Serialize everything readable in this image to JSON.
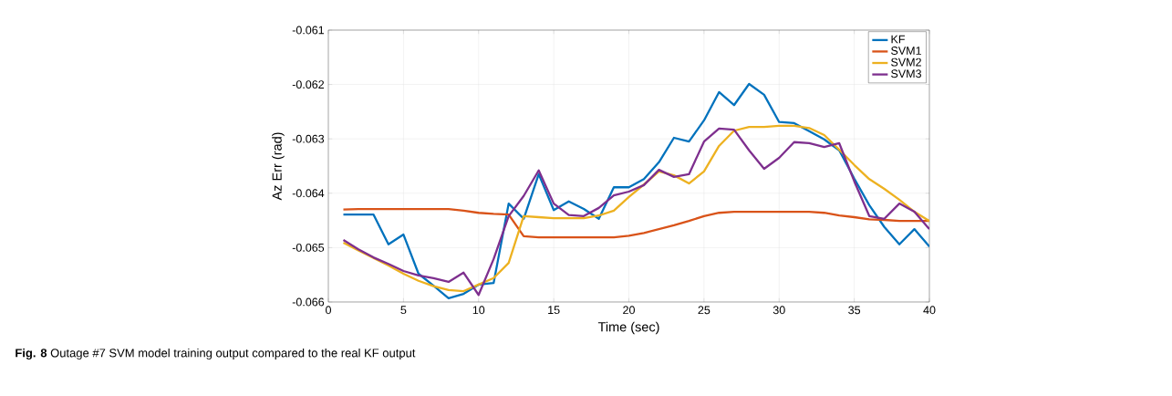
{
  "chart_data": {
    "type": "line",
    "xlabel": "Time (sec)",
    "ylabel": "Az Err (rad)",
    "annotations": [
      "**Fig. 8** Outage #7 SVM model training output compared to the real KF output"
    ],
    "x": [
      1,
      2,
      3,
      4,
      5,
      6,
      7,
      8,
      9,
      10,
      11,
      12,
      13,
      14,
      15,
      16,
      17,
      18,
      19,
      20,
      21,
      22,
      23,
      24,
      25,
      26,
      27,
      28,
      29,
      30,
      31,
      32,
      33,
      34,
      35,
      36,
      37,
      38,
      39,
      40
    ],
    "series": [
      {
        "name": "KF",
        "color": "#0072bd",
        "values": [
          -0.06439,
          -0.06439,
          -0.06439,
          -0.06494,
          -0.06476,
          -0.06548,
          -0.0657,
          -0.06593,
          -0.06585,
          -0.06568,
          -0.06565,
          -0.06419,
          -0.06447,
          -0.06365,
          -0.06431,
          -0.06415,
          -0.06429,
          -0.06447,
          -0.06389,
          -0.06389,
          -0.06374,
          -0.06343,
          -0.06298,
          -0.06305,
          -0.06266,
          -0.06214,
          -0.06238,
          -0.06199,
          -0.06219,
          -0.06269,
          -0.06271,
          -0.06286,
          -0.06301,
          -0.06321,
          -0.06373,
          -0.06422,
          -0.06462,
          -0.06494,
          -0.06466,
          -0.06498
        ]
      },
      {
        "name": "SVM1",
        "color": "#d95319",
        "values": [
          -0.0643,
          -0.06429,
          -0.06429,
          -0.06429,
          -0.06429,
          -0.06429,
          -0.06429,
          -0.06429,
          -0.06432,
          -0.06436,
          -0.06438,
          -0.06439,
          -0.06479,
          -0.06481,
          -0.06481,
          -0.06481,
          -0.06481,
          -0.06481,
          -0.06481,
          -0.06478,
          -0.06473,
          -0.06466,
          -0.06459,
          -0.06451,
          -0.06442,
          -0.06436,
          -0.06434,
          -0.06434,
          -0.06434,
          -0.06434,
          -0.06434,
          -0.06434,
          -0.06436,
          -0.06441,
          -0.06444,
          -0.06448,
          -0.06449,
          -0.06451,
          -0.06451,
          -0.06451
        ]
      },
      {
        "name": "SVM2",
        "color": "#edb120",
        "values": [
          -0.06491,
          -0.06505,
          -0.06519,
          -0.06533,
          -0.06548,
          -0.06561,
          -0.06571,
          -0.06578,
          -0.0658,
          -0.06568,
          -0.06556,
          -0.06528,
          -0.06442,
          -0.06444,
          -0.06446,
          -0.06446,
          -0.06446,
          -0.06441,
          -0.06432,
          -0.06407,
          -0.06384,
          -0.0636,
          -0.06367,
          -0.06382,
          -0.0636,
          -0.06313,
          -0.06285,
          -0.06278,
          -0.06278,
          -0.06276,
          -0.06276,
          -0.0628,
          -0.06293,
          -0.0632,
          -0.06348,
          -0.06374,
          -0.06392,
          -0.06412,
          -0.06434,
          -0.06451
        ]
      },
      {
        "name": "SVM3",
        "color": "#7e2f8e",
        "values": [
          -0.06486,
          -0.06503,
          -0.06518,
          -0.0653,
          -0.06543,
          -0.06551,
          -0.06556,
          -0.06563,
          -0.06546,
          -0.06587,
          -0.06521,
          -0.06442,
          -0.06405,
          -0.06358,
          -0.06419,
          -0.0644,
          -0.06442,
          -0.06427,
          -0.06404,
          -0.06397,
          -0.06385,
          -0.06357,
          -0.0637,
          -0.06365,
          -0.06305,
          -0.06281,
          -0.06283,
          -0.06321,
          -0.06355,
          -0.06335,
          -0.06306,
          -0.06308,
          -0.06315,
          -0.06308,
          -0.06378,
          -0.06442,
          -0.06447,
          -0.06419,
          -0.06434,
          -0.06466
        ]
      }
    ],
    "xlim": [
      0,
      40
    ],
    "ylim": [
      -0.066,
      -0.061
    ],
    "xticks": [
      0,
      5,
      10,
      15,
      20,
      25,
      30,
      35,
      40
    ],
    "yticks": [
      -0.066,
      -0.065,
      -0.064,
      -0.063,
      -0.062,
      -0.061
    ],
    "grid": true,
    "legend": "top right",
    "line_style": "solid",
    "marker": "none"
  }
}
